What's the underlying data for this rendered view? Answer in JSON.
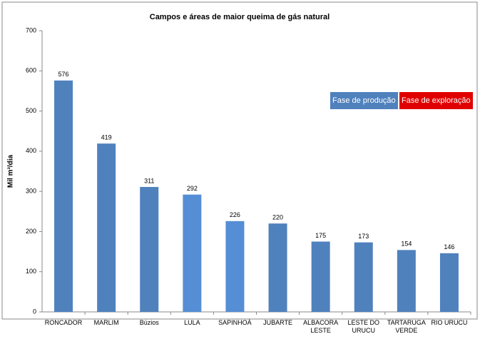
{
  "chart_data": {
    "type": "bar",
    "title": "Campos e áreas de maior queima de gás natural",
    "y_label": "Mil m³/dia",
    "categories": [
      "RONCADOR",
      "MARLIM",
      "Búzios",
      "LULA",
      "SAPINHOÁ",
      "JUBARTE",
      "ALBACORA LESTE",
      "LESTE DO URUCU",
      "TARTARUGA VERDE",
      "RIO URUCU"
    ],
    "values": [
      576,
      419,
      311,
      292,
      226,
      220,
      175,
      173,
      154,
      146
    ],
    "colors": [
      "#4f81bd",
      "#4f81bd",
      "#4f81bd",
      "#558ed5",
      "#558ed5",
      "#4f81bd",
      "#4f81bd",
      "#4f81bd",
      "#4f81bd",
      "#4f81bd"
    ],
    "legend": [
      {
        "label": "Fase de produção",
        "color": "#4f81bd"
      },
      {
        "label": "Fase de exploração",
        "color": "#e00000"
      }
    ],
    "ylim": [
      0,
      700
    ],
    "yticks": [
      0,
      100,
      200,
      300,
      400,
      500,
      600,
      700
    ],
    "grid": false
  }
}
